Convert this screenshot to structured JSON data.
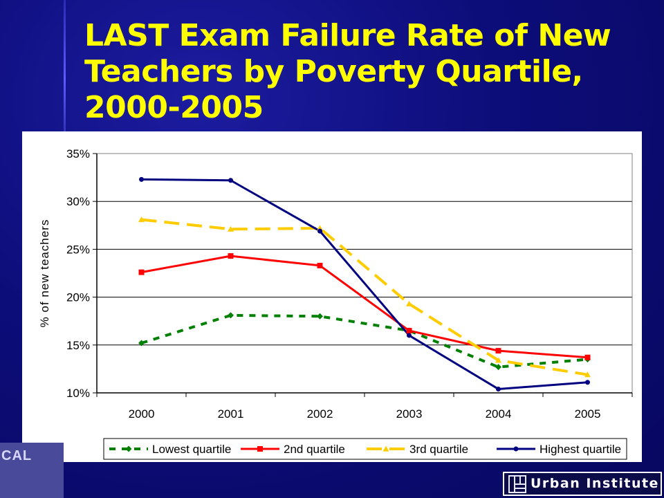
{
  "slide": {
    "title": "LAST Exam Failure Rate of New Teachers by Poverty Quartile, 2000-2005",
    "colors": {
      "background": "#0a0a6e",
      "title": "#ffff00",
      "panel": "#ffffff"
    }
  },
  "logos": {
    "left_text": "CAL",
    "right_text": "Urban Institute"
  },
  "chart_data": {
    "type": "line",
    "title": "",
    "xlabel": "",
    "ylabel": "% of new teachers",
    "categories": [
      "2000",
      "2001",
      "2002",
      "2003",
      "2004",
      "2005"
    ],
    "ylim": [
      0.1,
      0.35
    ],
    "yticks": [
      "10%",
      "15%",
      "20%",
      "25%",
      "30%",
      "35%"
    ],
    "grid": true,
    "legend_position": "bottom",
    "series": [
      {
        "name": "Lowest quartile",
        "values": [
          0.152,
          0.181,
          0.18,
          0.165,
          0.127,
          0.135
        ],
        "color": "#008000",
        "dash": "dotted",
        "marker": "diamond"
      },
      {
        "name": "2nd quartile",
        "values": [
          0.226,
          0.243,
          0.233,
          0.165,
          0.144,
          0.137
        ],
        "color": "#ff0000",
        "dash": "solid",
        "marker": "square"
      },
      {
        "name": "3rd quartile",
        "values": [
          0.281,
          0.271,
          0.272,
          0.193,
          0.134,
          0.119
        ],
        "color": "#ffcc00",
        "dash": "dashed",
        "marker": "triangle"
      },
      {
        "name": "Highest quartile",
        "values": [
          0.323,
          0.322,
          0.269,
          0.16,
          0.104,
          0.111
        ],
        "color": "#000080",
        "dash": "solid",
        "marker": "circle"
      }
    ]
  }
}
